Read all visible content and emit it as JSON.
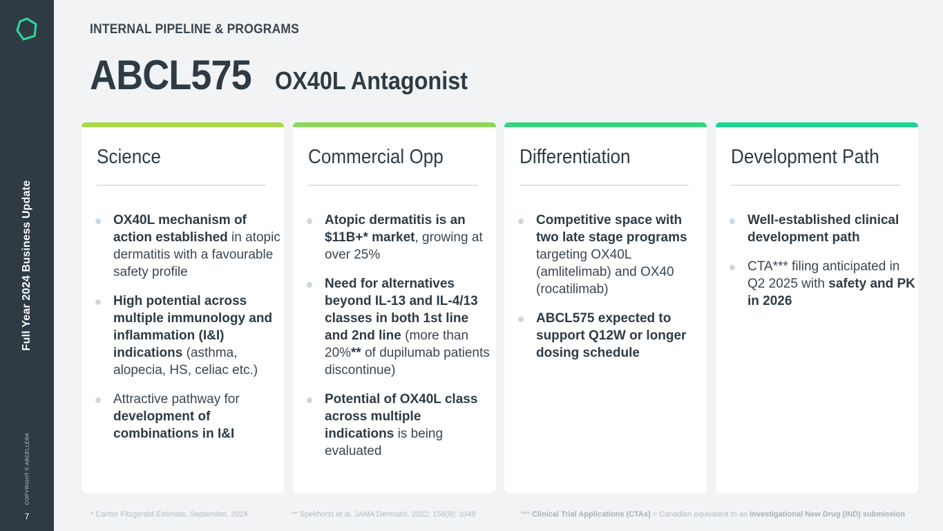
{
  "sidebar": {
    "title": "Full Year 2024 Business Update",
    "copyright": "COPYRIGHT © ABCELLERA",
    "page_number": "7",
    "logo_icon": "hexagon-logo-icon",
    "logo_color": "#2ed39a"
  },
  "header": {
    "eyebrow": "INTERNAL PIPELINE & PROGRAMS",
    "title": "ABCL575",
    "subtitle": "OX40L Antagonist"
  },
  "cards": [
    {
      "title": "Science",
      "accent": "#a8d84a",
      "bullets": [
        [
          {
            "t": "OX40L mechanism of action established",
            "b": true
          },
          {
            "t": " in atopic dermatitis with a favourable safety profile",
            "b": false
          }
        ],
        [
          {
            "t": "High potential across multiple immunology and inflammation (I&I) indications",
            "b": true
          },
          {
            "t": " (asthma, alopecia, HS, celiac etc.)",
            "b": false
          }
        ],
        [
          {
            "t": "Attractive pathway for ",
            "b": false
          },
          {
            "t": "development of combinations in I&I",
            "b": true
          }
        ]
      ]
    },
    {
      "title": "Commercial Opp",
      "accent": "#8ed65a",
      "bullets": [
        [
          {
            "t": "Atopic dermatitis is an $11B+* market",
            "b": true
          },
          {
            "t": ", growing at over 25%",
            "b": false
          }
        ],
        [
          {
            "t": "Need for alternatives beyond IL-13 and IL-4/13 classes in both 1st line and 2nd line",
            "b": true
          },
          {
            "t": " (more than 20%",
            "b": false
          },
          {
            "t": "**",
            "b": true
          },
          {
            "t": " of dupilumab patients discontinue)",
            "b": false
          }
        ],
        [
          {
            "t": "Potential of OX40L class across multiple indications",
            "b": true
          },
          {
            "t": " is being evaluated",
            "b": false
          }
        ]
      ]
    },
    {
      "title": "Differentiation",
      "accent": "#35d47e",
      "bullets": [
        [
          {
            "t": "Competitive space with two late stage programs",
            "b": true
          },
          {
            "t": " targeting OX40L (amlitelimab) and OX40 (rocatilimab)",
            "b": false
          }
        ],
        [
          {
            "t": "ABCL575 expected to support Q12W or longer dosing schedule",
            "b": true
          }
        ]
      ]
    },
    {
      "title": "Development Path",
      "accent": "#1fd392",
      "bullets": [
        [
          {
            "t": "Well-established clinical development path",
            "b": true
          }
        ],
        [
          {
            "t": "CTA*** filing anticipated in Q2 2025 with ",
            "b": false
          },
          {
            "t": "safety and PK in 2026",
            "b": true
          }
        ]
      ]
    }
  ],
  "footnotes": [
    [
      {
        "t": "* Cantor Fitzgerald Estimate, September, 2024",
        "b": false
      }
    ],
    [
      {
        "t": "** Spekhorst et al. JAMA Dermatol. 2022; 158(9): 1048",
        "b": false
      }
    ],
    [
      {
        "t": "*** ",
        "b": false
      },
      {
        "t": "Clinical Trial Applications (CTAs)",
        "b": true
      },
      {
        "t": " = Canadian equivalent to an ",
        "b": false
      },
      {
        "t": "Investigational New Drug (IND) submission",
        "b": true
      }
    ]
  ]
}
